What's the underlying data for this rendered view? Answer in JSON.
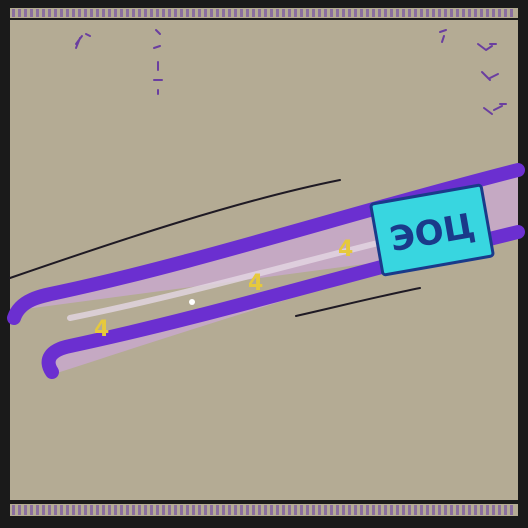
{
  "colors": {
    "background": "#b4ab94",
    "frame": "#1a1a1a",
    "border_stripe": "#8a6fa0",
    "tube_outline": "#6b2fd0",
    "tube_fill": "#c7a8c8",
    "tube_highlight": "#e3d7e3",
    "label_box": "#38d6e0",
    "label_outline": "#1a3a8a",
    "arrow_marks": "#e6c93c",
    "ink_line": "#1f1a24",
    "scribble": "#6a3ea0"
  },
  "label_box": {
    "text": "ЭОЦ"
  },
  "marks": {
    "arrows": [
      "4",
      "4",
      "4"
    ]
  }
}
